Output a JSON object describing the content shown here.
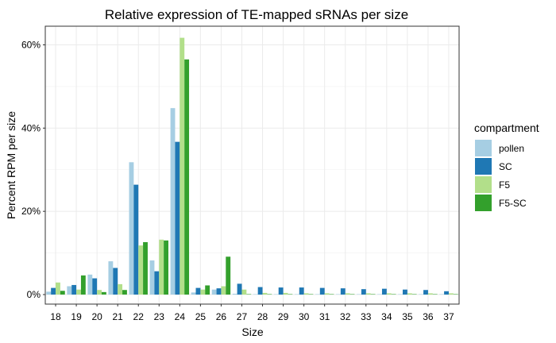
{
  "chart_data": {
    "type": "bar",
    "title": "Relative expression of TE-mapped sRNAs per size",
    "xlabel": "Size",
    "ylabel": "Percent RPM per size",
    "categories": [
      "18",
      "19",
      "20",
      "21",
      "22",
      "23",
      "24",
      "25",
      "26",
      "27",
      "28",
      "29",
      "30",
      "31",
      "32",
      "33",
      "34",
      "35",
      "36",
      "37"
    ],
    "ylim": [
      0,
      65
    ],
    "yticks": [
      0,
      20,
      40,
      60
    ],
    "ytick_labels": [
      "0%",
      "20%",
      "40%",
      "60%"
    ],
    "grid": true,
    "legend": {
      "title": "compartment",
      "placement": "right"
    },
    "series": [
      {
        "name": "pollen",
        "color": "#a6cee3",
        "values": [
          0.7,
          2.0,
          4.8,
          8.0,
          31.8,
          8.2,
          44.8,
          0.5,
          1.2,
          0.2,
          0.1,
          0.1,
          0.1,
          0.1,
          0.1,
          0.1,
          0.1,
          0.1,
          0.1,
          0.1
        ]
      },
      {
        "name": "SC",
        "color": "#1f78b4",
        "values": [
          1.6,
          2.3,
          3.9,
          6.4,
          26.4,
          5.6,
          36.7,
          1.6,
          1.5,
          2.6,
          1.8,
          1.7,
          1.7,
          1.6,
          1.5,
          1.3,
          1.4,
          1.2,
          1.1,
          0.8
        ]
      },
      {
        "name": "F5",
        "color": "#b2df8a",
        "values": [
          2.9,
          1.2,
          1.1,
          2.5,
          11.8,
          13.2,
          61.7,
          1.2,
          2.0,
          1.2,
          0.4,
          0.4,
          0.3,
          0.3,
          0.3,
          0.3,
          0.3,
          0.3,
          0.3,
          0.3
        ]
      },
      {
        "name": "F5-SC",
        "color": "#33a02c",
        "values": [
          0.9,
          4.6,
          0.6,
          1.1,
          12.6,
          13.0,
          56.5,
          2.2,
          9.1,
          0.1,
          0.1,
          0.1,
          0.1,
          0.1,
          0.1,
          0.1,
          0.1,
          0.1,
          0.1,
          0.1
        ]
      }
    ]
  }
}
